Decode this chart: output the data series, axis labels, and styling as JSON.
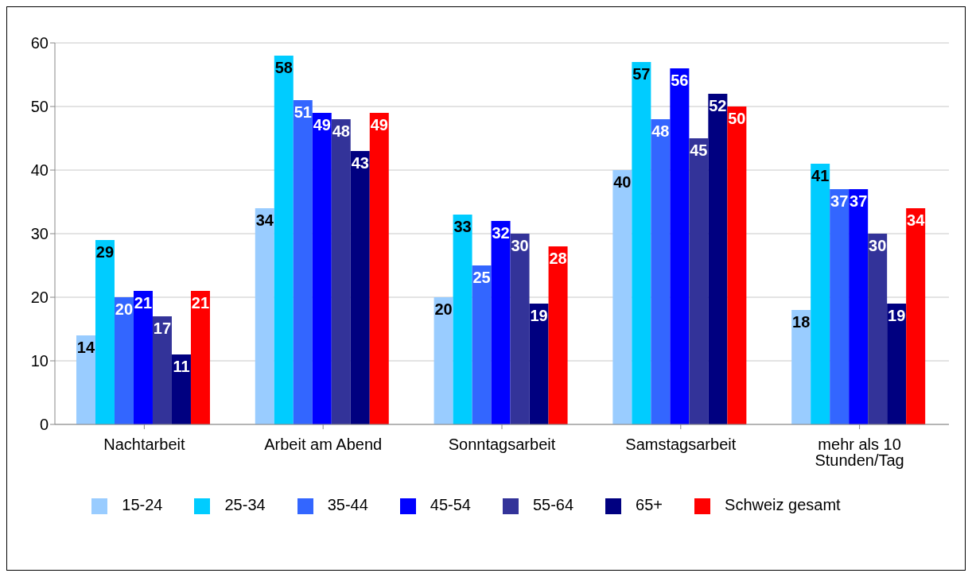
{
  "chart_data": {
    "type": "bar",
    "categories": [
      "Nachtarbeit",
      "Arbeit am Abend",
      "Sonntagsarbeit",
      "Samstagsarbeit",
      "mehr als 10 Stunden/Tag"
    ],
    "series": [
      {
        "name": "15-24",
        "color": "#99ccff",
        "values": [
          14,
          34,
          20,
          40,
          18
        ]
      },
      {
        "name": "25-34",
        "color": "#00ccff",
        "values": [
          29,
          58,
          33,
          57,
          41
        ]
      },
      {
        "name": "35-44",
        "color": "#3366ff",
        "values": [
          20,
          51,
          25,
          48,
          37
        ]
      },
      {
        "name": "45-54",
        "color": "#0000ff",
        "values": [
          21,
          49,
          32,
          56,
          37
        ]
      },
      {
        "name": "55-64",
        "color": "#333399",
        "values": [
          17,
          48,
          30,
          45,
          30
        ]
      },
      {
        "name": "65+",
        "color": "#000080",
        "values": [
          11,
          43,
          19,
          52,
          19
        ]
      },
      {
        "name": "Schweiz gesamt",
        "color": "#ff0000",
        "values": [
          21,
          49,
          28,
          50,
          34
        ]
      }
    ],
    "ylim": [
      0,
      60
    ],
    "yticks": [
      0,
      10,
      20,
      30,
      40,
      50,
      60
    ],
    "grid": "y",
    "legend": "bottom",
    "data_labels": true
  }
}
